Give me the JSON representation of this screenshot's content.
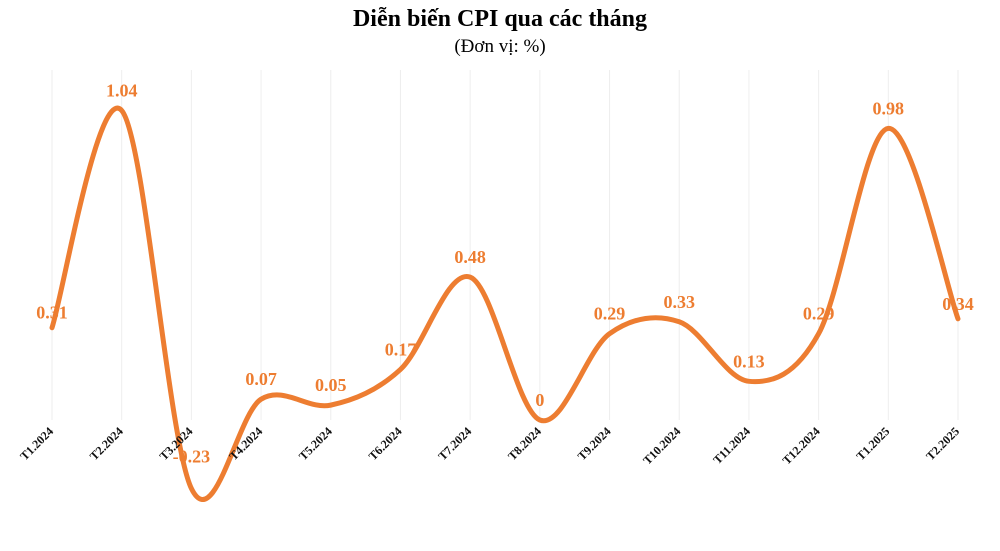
{
  "chart_data": {
    "type": "line",
    "title": "Diễn biến CPI qua các tháng",
    "subtitle": "(Đơn vị: %)",
    "categories": [
      "T1.2024",
      "T2.2024",
      "T3.2024",
      "T4.2024",
      "T5.2024",
      "T6.2024",
      "T7.2024",
      "T8.2024",
      "T9.2024",
      "T10.2024",
      "T11.2024",
      "T12.2024",
      "T1.2025",
      "T2.2025"
    ],
    "series": [
      {
        "values": [
          0.31,
          1.04,
          -0.23,
          0.07,
          0.05,
          0.17,
          0.48,
          0,
          0.29,
          0.33,
          0.13,
          0.29,
          0.98,
          0.34
        ]
      }
    ],
    "data_labels": [
      "0.31",
      "1.04",
      "-0.23",
      "0.07",
      "0.05",
      "0.17",
      "0.48",
      "0",
      "0.29",
      "0.33",
      "0.13",
      "0.29",
      "0.98",
      "0.34"
    ],
    "line_color": "#ED7D31",
    "label_color": "#ED7D31",
    "smooth": true,
    "grid": "vertical-light",
    "ylim": [
      -0.25,
      1.1
    ]
  }
}
